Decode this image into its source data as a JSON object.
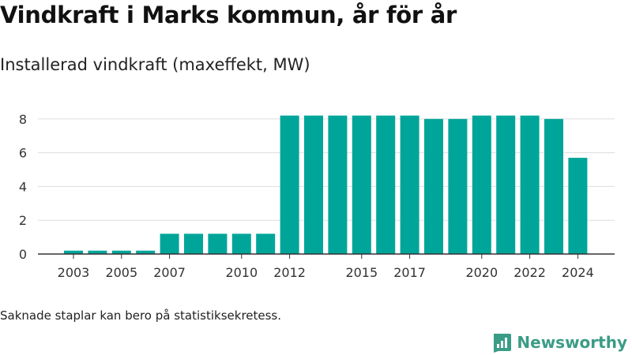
{
  "title": "Vindkraft i Marks kommun, år för år",
  "subtitle": "Installerad vindkraft (maxeffekt, MW)",
  "footnote": "Saknade staplar kan bero på statistiksekretess.",
  "brand": "Newsworthy",
  "colors": {
    "bar": "#00a599",
    "brand": "#3b9c86",
    "grid": "#dddddd",
    "axis": "#333333"
  },
  "chart_data": {
    "type": "bar",
    "categories": [
      "2003",
      "2004",
      "2005",
      "2006",
      "2007",
      "2008",
      "2009",
      "2010",
      "2011",
      "2012",
      "2013",
      "2014",
      "2015",
      "2016",
      "2017",
      "2018",
      "2019",
      "2020",
      "2021",
      "2022",
      "2023",
      "2024"
    ],
    "values": [
      0.2,
      0.2,
      0.2,
      0.2,
      1.2,
      1.2,
      1.2,
      1.2,
      1.2,
      8.2,
      8.2,
      8.2,
      8.2,
      8.2,
      8.2,
      8.0,
      8.0,
      8.2,
      8.2,
      8.2,
      8.0,
      5.7
    ],
    "x_tick_labels": [
      "2003",
      "2005",
      "2007",
      "2010",
      "2012",
      "2015",
      "2017",
      "2020",
      "2022",
      "2024"
    ],
    "y_ticks": [
      0,
      2,
      4,
      6,
      8
    ],
    "ylim": [
      0,
      9.2
    ],
    "grid": true
  }
}
